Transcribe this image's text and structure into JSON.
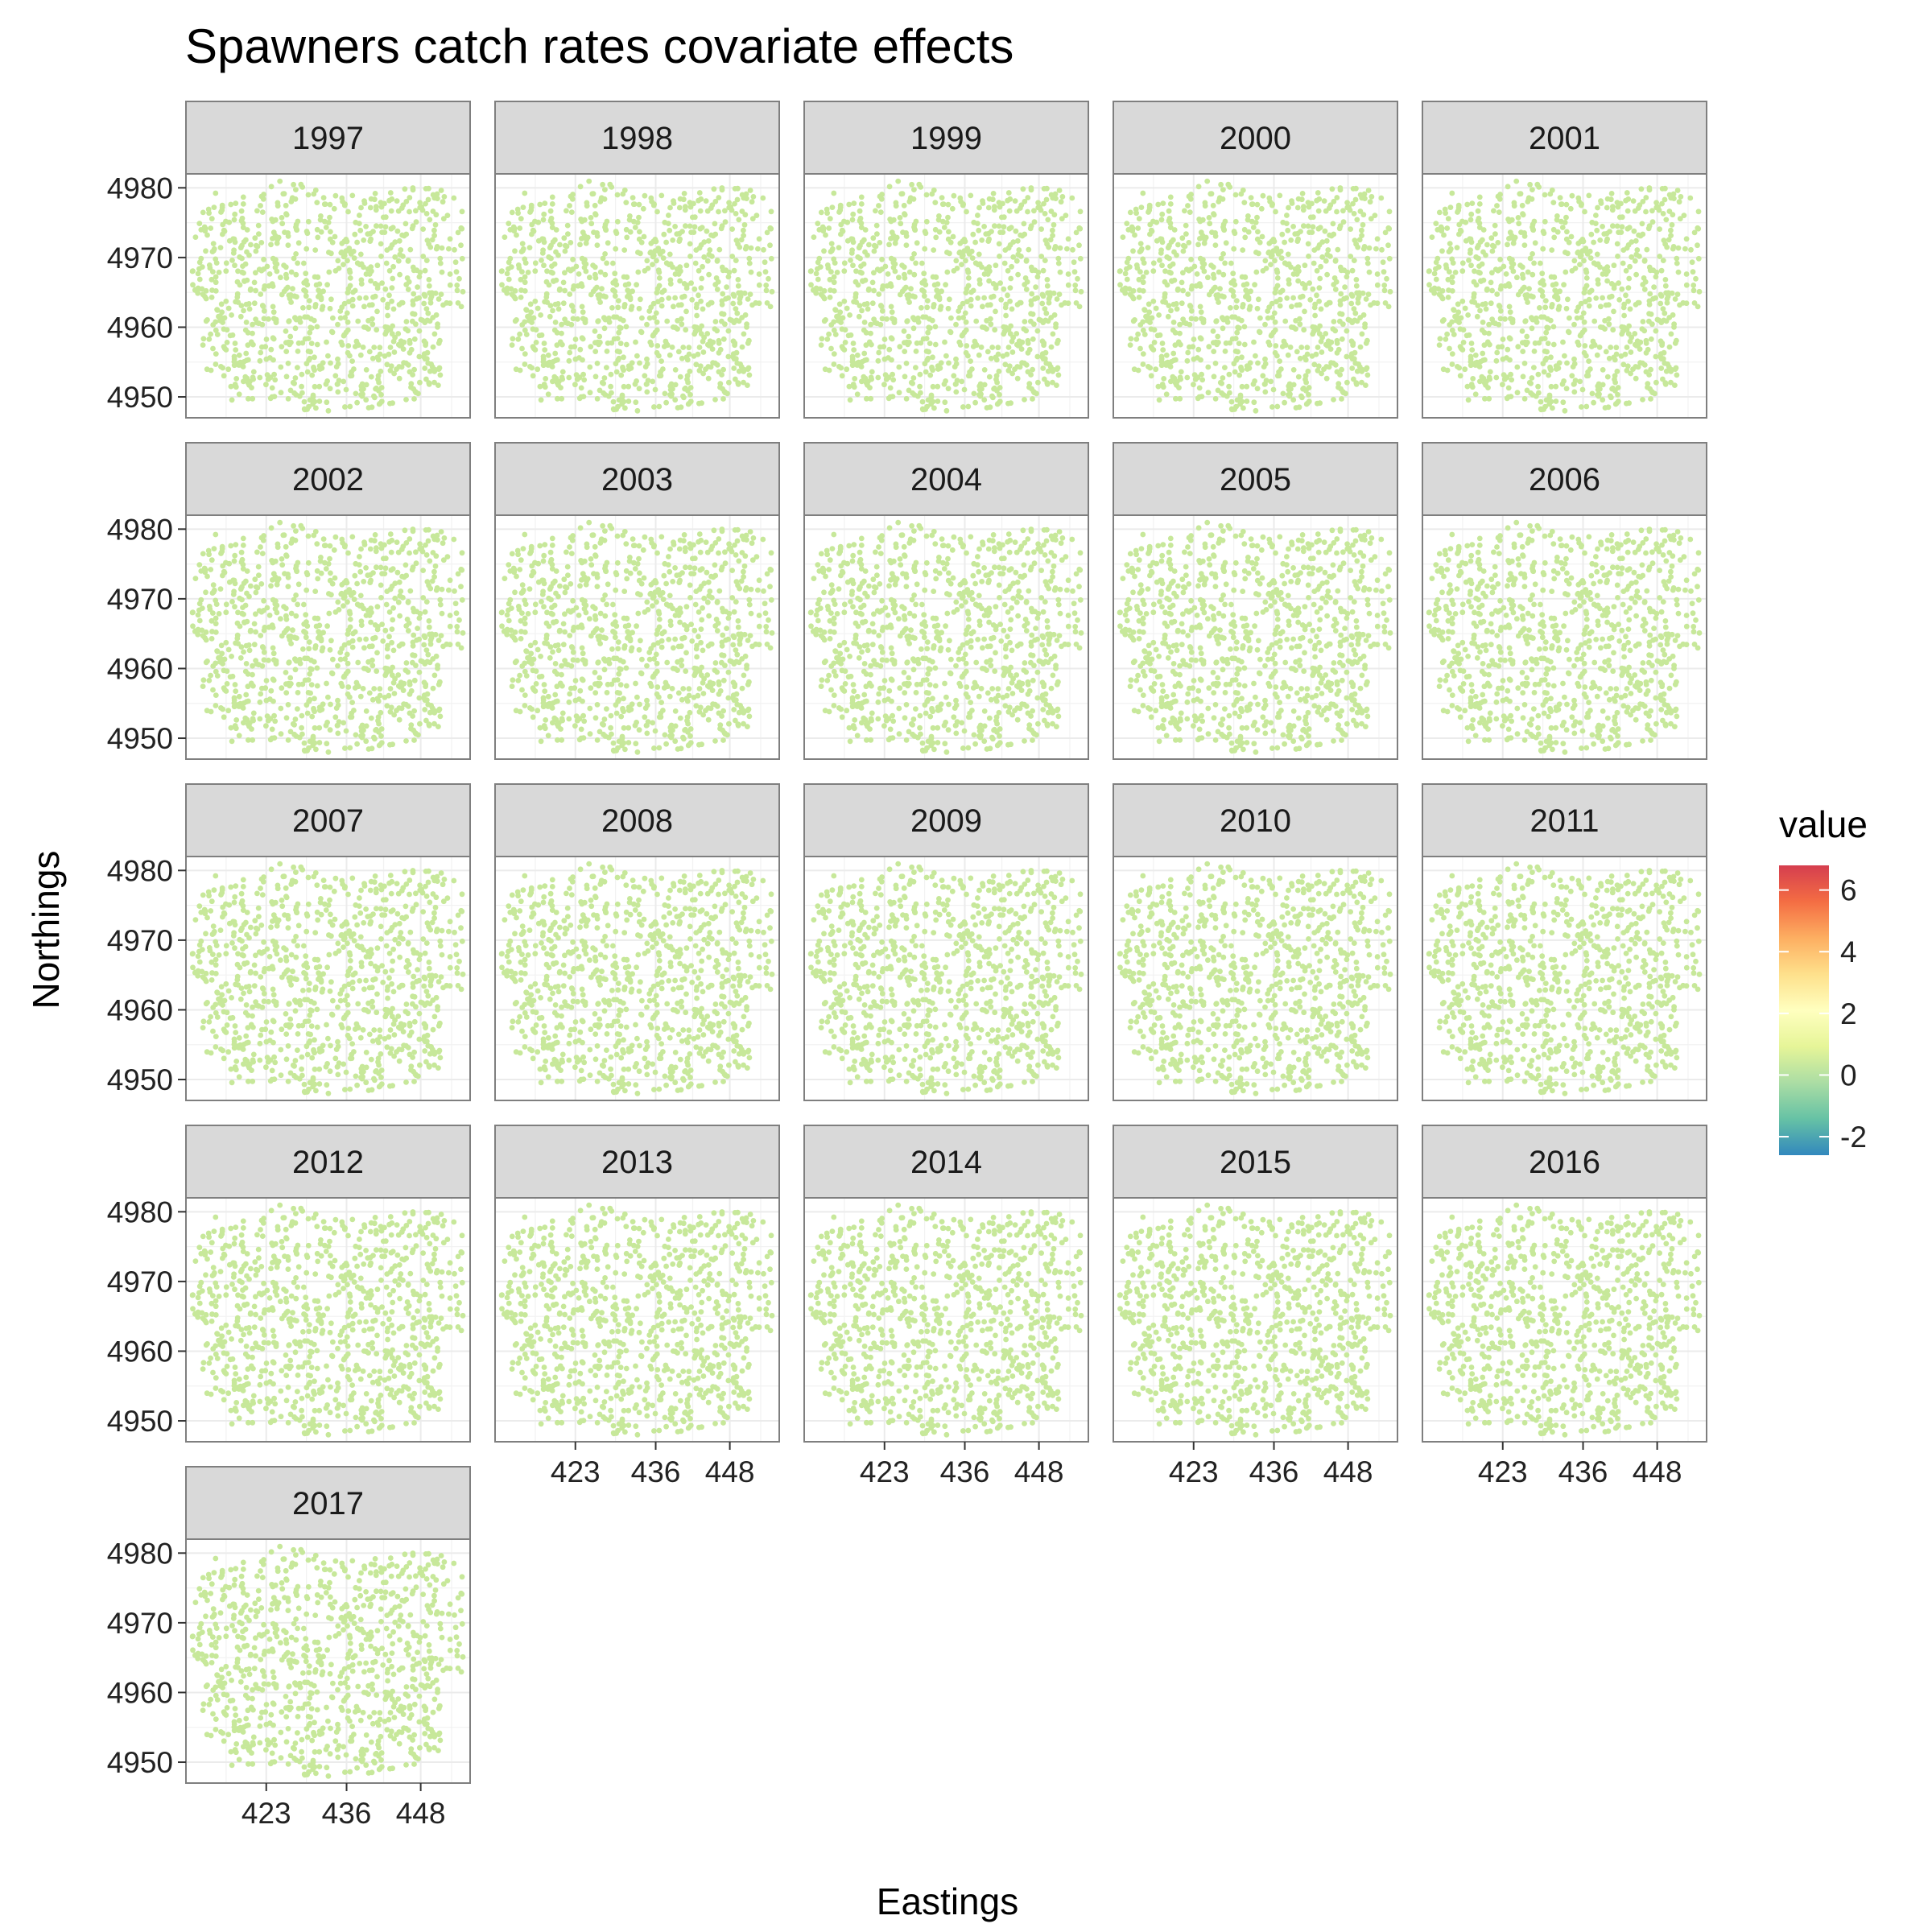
{
  "chart_data": {
    "type": "scatter",
    "title": "Spawners catch rates covariate effects",
    "xlabel": "Eastings",
    "ylabel": "Northings",
    "xlim": [
      410,
      456
    ],
    "ylim": [
      4947,
      4982
    ],
    "x_ticks": [
      423,
      436,
      448
    ],
    "y_ticks": [
      4950,
      4960,
      4970,
      4980
    ],
    "facet_by": "year",
    "panels": [
      "1997",
      "1998",
      "1999",
      "2000",
      "2001",
      "2002",
      "2003",
      "2004",
      "2005",
      "2006",
      "2007",
      "2008",
      "2009",
      "2010",
      "2011",
      "2012",
      "2013",
      "2014",
      "2015",
      "2016",
      "2017"
    ],
    "point_color": "#c7e89a",
    "point_value_approx": 0,
    "grid": true,
    "panel_border": true,
    "legend": {
      "title": "value",
      "position": "right",
      "range": [
        -2.6,
        6.8
      ],
      "ticks": [
        6,
        4,
        2,
        0,
        -2
      ],
      "colors": [
        "#3288bd",
        "#66c2a5",
        "#abdda4",
        "#e6f598",
        "#ffffbf",
        "#fee08b",
        "#fdae61",
        "#f46d43",
        "#d53e4f"
      ]
    }
  }
}
